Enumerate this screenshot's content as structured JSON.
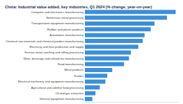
{
  "chart_data": {
    "type": "bar",
    "title": "China: Industrial value added, key industries, Q1 2024 (% change, year-on-year)",
    "orientation": "horizontal",
    "categories": [
      "Computer and electronics manufacturing",
      "Nonferrous metal processing",
      "Transportation equipment manufacturing",
      "Rubber and plastic products",
      "Automotive manufacturing",
      "Chemical raw materials and chemical product manufacturing",
      "Electricity and heat production and supply",
      "Ferrous metal smelting and rolling processing",
      "Wine, beverage and refined tea manufacturing",
      "Food manufacturing",
      "Metal products",
      "Textiles",
      "Electrical machinery and equipment manufacturing",
      "Agricultural and sideline food processing",
      "Oil and gas extraction",
      "General equipment manufacturing"
    ],
    "values": [
      14.6,
      13.2,
      11.2,
      10.6,
      9.6,
      9.3,
      8.6,
      7.4,
      7.1,
      6.3,
      4.4,
      3.6,
      3.3,
      2.4,
      1.7,
      1.2
    ],
    "color": "#3d8fd8",
    "xlim": [
      0,
      15
    ],
    "grid": false,
    "tick_labels": false
  }
}
